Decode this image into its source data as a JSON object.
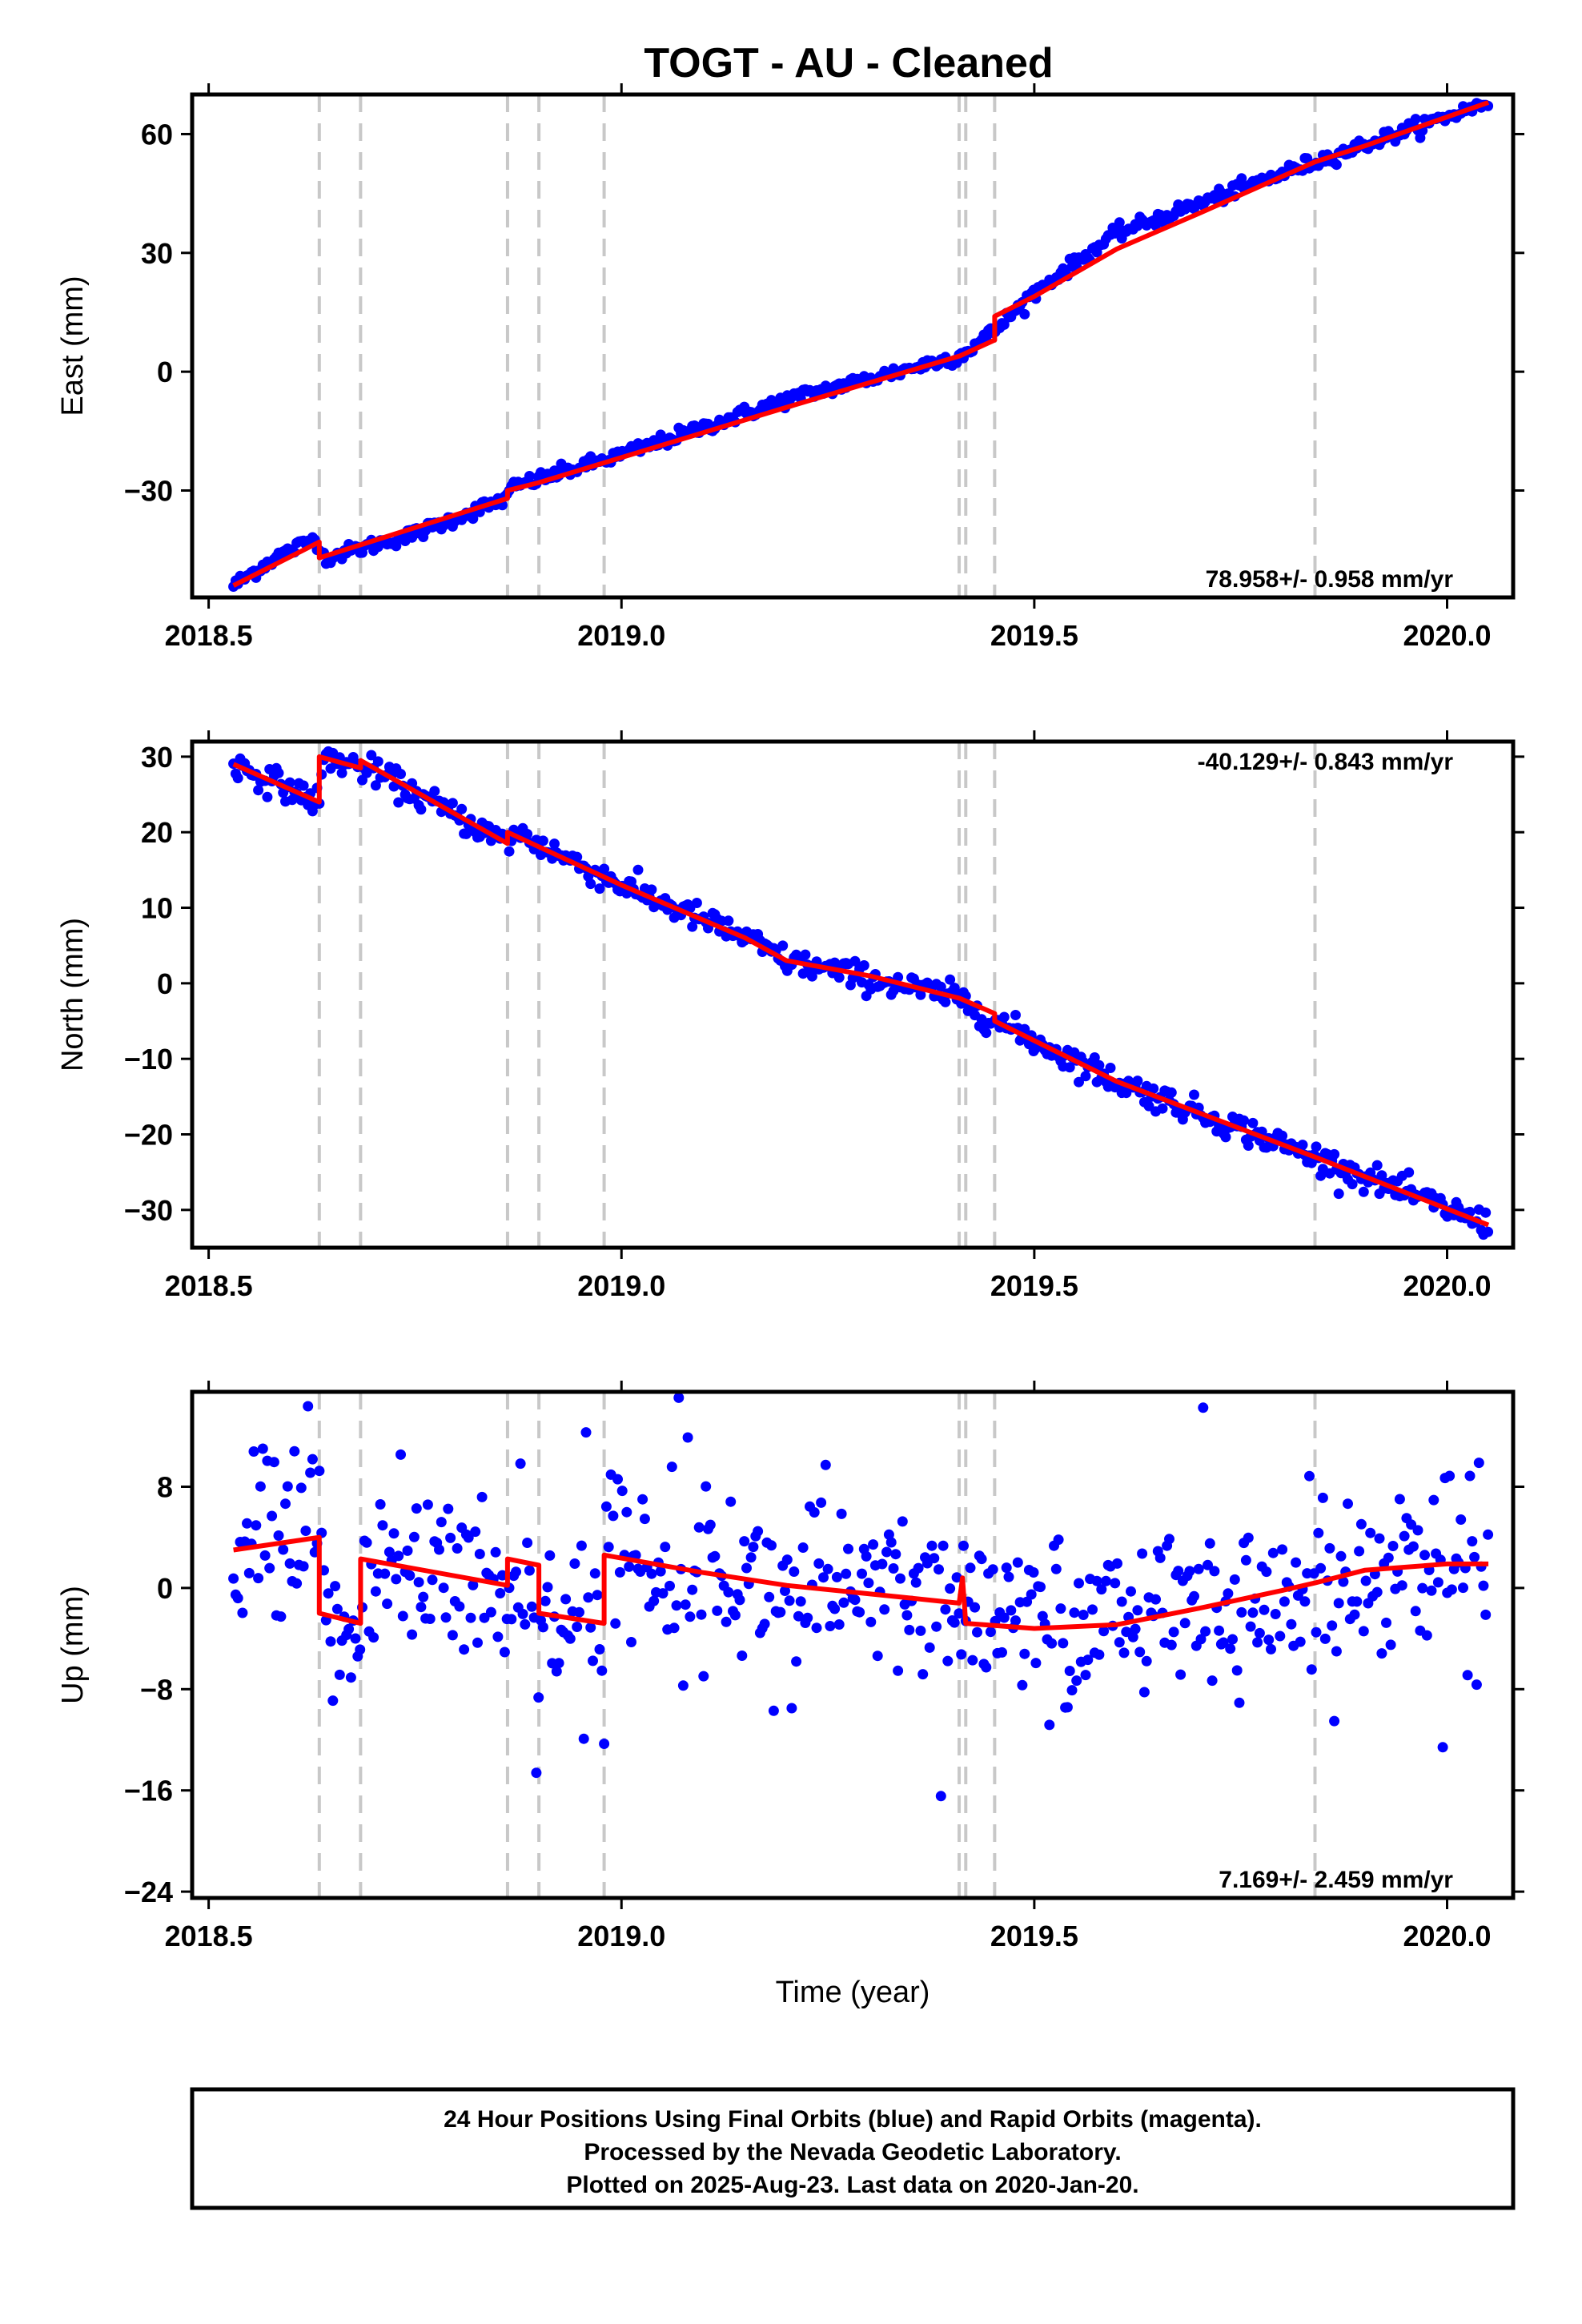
{
  "title": "TOGT  - AU - Cleaned",
  "chart_data": {
    "type": "scatter",
    "xlim": [
      2018.48,
      2020.08
    ],
    "xticks": [
      2018.5,
      2019.0,
      2019.5,
      2020.0
    ],
    "xtick_labels": [
      "2018.5",
      "2019.0",
      "2019.5",
      "2020.0"
    ],
    "xlabel": "Time (year)",
    "vertical_markers": [
      2018.634,
      2018.684,
      2018.862,
      2018.9,
      2018.979,
      2019.409,
      2019.417,
      2019.452,
      2019.84
    ],
    "colors": {
      "final_orbit_points": "#0000ff",
      "model_fit": "#ff0000",
      "markers": "#c8c8c8"
    },
    "panels": [
      {
        "name": "east",
        "ylabel": "East (mm)",
        "ylim": [
          -57,
          70
        ],
        "yticks": [
          60,
          30,
          0,
          -30
        ],
        "ytick_labels": [
          "60",
          "30",
          "0",
          "−30"
        ],
        "rate": "78.958+/- 0.958 mm/yr",
        "rate_position": "bottom-right",
        "series": [
          {
            "kind": "points",
            "scatter_sd": 0.9,
            "values": [
              {
                "x": 2018.53,
                "y": -54
              },
              {
                "x": 2018.58,
                "y": -47
              },
              {
                "x": 2018.63,
                "y": -42
              },
              {
                "x": 2018.64,
                "y": -47
              },
              {
                "x": 2018.75,
                "y": -41
              },
              {
                "x": 2018.86,
                "y": -32
              },
              {
                "x": 2018.87,
                "y": -29
              },
              {
                "x": 2019.0,
                "y": -21
              },
              {
                "x": 2019.2,
                "y": -7
              },
              {
                "x": 2019.41,
                "y": 4
              },
              {
                "x": 2019.45,
                "y": 10
              },
              {
                "x": 2019.5,
                "y": 20
              },
              {
                "x": 2019.6,
                "y": 35
              },
              {
                "x": 2019.84,
                "y": 53
              },
              {
                "x": 2020.05,
                "y": 68
              }
            ]
          },
          {
            "kind": "model",
            "values": [
              {
                "x": 2018.53,
                "y": -54
              },
              {
                "x": 2018.634,
                "y": -43
              },
              {
                "x": 2018.634,
                "y": -47
              },
              {
                "x": 2018.862,
                "y": -32
              },
              {
                "x": 2018.862,
                "y": -30
              },
              {
                "x": 2018.9,
                "y": -28
              },
              {
                "x": 2018.979,
                "y": -23
              },
              {
                "x": 2019.2,
                "y": -9
              },
              {
                "x": 2019.41,
                "y": 4
              },
              {
                "x": 2019.452,
                "y": 8
              },
              {
                "x": 2019.452,
                "y": 14
              },
              {
                "x": 2019.5,
                "y": 19
              },
              {
                "x": 2019.6,
                "y": 31
              },
              {
                "x": 2019.7,
                "y": 40
              },
              {
                "x": 2019.84,
                "y": 53
              },
              {
                "x": 2019.9,
                "y": 57
              },
              {
                "x": 2020.05,
                "y": 68
              }
            ]
          }
        ]
      },
      {
        "name": "north",
        "ylabel": "North (mm)",
        "ylim": [
          -35,
          32
        ],
        "yticks": [
          30,
          20,
          10,
          0,
          -10,
          -20,
          -30
        ],
        "ytick_labels": [
          "30",
          "20",
          "10",
          "0",
          "−10",
          "−20",
          "−30"
        ],
        "rate": "-40.129+/- 0.843 mm/yr",
        "rate_position": "top-right",
        "series": [
          {
            "kind": "points",
            "scatter_sd": 0.9,
            "values": [
              {
                "x": 2018.53,
                "y": 29
              },
              {
                "x": 2018.634,
                "y": 24
              },
              {
                "x": 2018.64,
                "y": 30
              },
              {
                "x": 2018.7,
                "y": 28
              },
              {
                "x": 2018.862,
                "y": 18.5
              },
              {
                "x": 2018.87,
                "y": 20
              },
              {
                "x": 2019.0,
                "y": 13
              },
              {
                "x": 2019.15,
                "y": 6
              },
              {
                "x": 2019.2,
                "y": 3
              },
              {
                "x": 2019.41,
                "y": -2
              },
              {
                "x": 2019.452,
                "y": -5
              },
              {
                "x": 2019.6,
                "y": -13
              },
              {
                "x": 2019.84,
                "y": -23
              },
              {
                "x": 2020.05,
                "y": -32
              }
            ]
          },
          {
            "kind": "model",
            "values": [
              {
                "x": 2018.53,
                "y": 29
              },
              {
                "x": 2018.634,
                "y": 24
              },
              {
                "x": 2018.634,
                "y": 30
              },
              {
                "x": 2018.684,
                "y": 28.5
              },
              {
                "x": 2018.684,
                "y": 29.5
              },
              {
                "x": 2018.862,
                "y": 18.5
              },
              {
                "x": 2018.862,
                "y": 20
              },
              {
                "x": 2019.0,
                "y": 13
              },
              {
                "x": 2019.15,
                "y": 6
              },
              {
                "x": 2019.2,
                "y": 3
              },
              {
                "x": 2019.3,
                "y": 1
              },
              {
                "x": 2019.41,
                "y": -2
              },
              {
                "x": 2019.452,
                "y": -4
              },
              {
                "x": 2019.452,
                "y": -5
              },
              {
                "x": 2019.6,
                "y": -13
              },
              {
                "x": 2019.84,
                "y": -23
              },
              {
                "x": 2020.05,
                "y": -32
              }
            ]
          }
        ]
      },
      {
        "name": "up",
        "ylabel": "Up (mm)",
        "ylim": [
          -24.5,
          15.5
        ],
        "yticks": [
          8,
          0,
          -8,
          -16,
          -24
        ],
        "ytick_labels": [
          "8",
          "0",
          "−8",
          "−16",
          "−24"
        ],
        "rate": "7.169+/- 2.459 mm/yr",
        "rate_position": "bottom-right",
        "series": [
          {
            "kind": "points",
            "scatter_sd": 3.2,
            "values": [
              {
                "x": 2018.53,
                "y": 3
              },
              {
                "x": 2018.634,
                "y": 4
              },
              {
                "x": 2018.64,
                "y": -2
              },
              {
                "x": 2018.684,
                "y": -3
              },
              {
                "x": 2018.69,
                "y": 2
              },
              {
                "x": 2018.862,
                "y": 0
              },
              {
                "x": 2018.87,
                "y": 2
              },
              {
                "x": 2018.9,
                "y": -2
              },
              {
                "x": 2018.979,
                "y": -3
              },
              {
                "x": 2018.985,
                "y": 3
              },
              {
                "x": 2019.2,
                "y": 0
              },
              {
                "x": 2019.41,
                "y": -1
              },
              {
                "x": 2019.42,
                "y": -3
              },
              {
                "x": 2019.55,
                "y": -3
              },
              {
                "x": 2019.7,
                "y": -2
              },
              {
                "x": 2019.84,
                "y": 0
              },
              {
                "x": 2019.9,
                "y": 1.5
              },
              {
                "x": 2020.05,
                "y": 2
              }
            ]
          },
          {
            "kind": "model",
            "values": [
              {
                "x": 2018.53,
                "y": 3
              },
              {
                "x": 2018.634,
                "y": 4
              },
              {
                "x": 2018.634,
                "y": -2
              },
              {
                "x": 2018.684,
                "y": -2.8
              },
              {
                "x": 2018.684,
                "y": 2.3
              },
              {
                "x": 2018.862,
                "y": 0.2
              },
              {
                "x": 2018.862,
                "y": 2.3
              },
              {
                "x": 2018.9,
                "y": 1.8
              },
              {
                "x": 2018.9,
                "y": -2
              },
              {
                "x": 2018.979,
                "y": -2.8
              },
              {
                "x": 2018.979,
                "y": 2.6
              },
              {
                "x": 2019.1,
                "y": 1.2
              },
              {
                "x": 2019.2,
                "y": 0.2
              },
              {
                "x": 2019.35,
                "y": -0.8
              },
              {
                "x": 2019.409,
                "y": -1.2
              },
              {
                "x": 2019.413,
                "y": 0.8
              },
              {
                "x": 2019.417,
                "y": -2.8
              },
              {
                "x": 2019.5,
                "y": -3.2
              },
              {
                "x": 2019.6,
                "y": -2.9
              },
              {
                "x": 2019.7,
                "y": -1.6
              },
              {
                "x": 2019.8,
                "y": -0.2
              },
              {
                "x": 2019.84,
                "y": 0.4
              },
              {
                "x": 2019.9,
                "y": 1.4
              },
              {
                "x": 2020.0,
                "y": 1.9
              },
              {
                "x": 2020.05,
                "y": 1.9
              }
            ]
          }
        ]
      }
    ]
  },
  "footer": {
    "line1": "24 Hour Positions Using Final Orbits (blue) and Rapid Orbits (magenta).",
    "line2": "Processed by the Nevada Geodetic Laboratory.",
    "line3": "Plotted on 2025-Aug-23. Last data on 2020-Jan-20."
  }
}
